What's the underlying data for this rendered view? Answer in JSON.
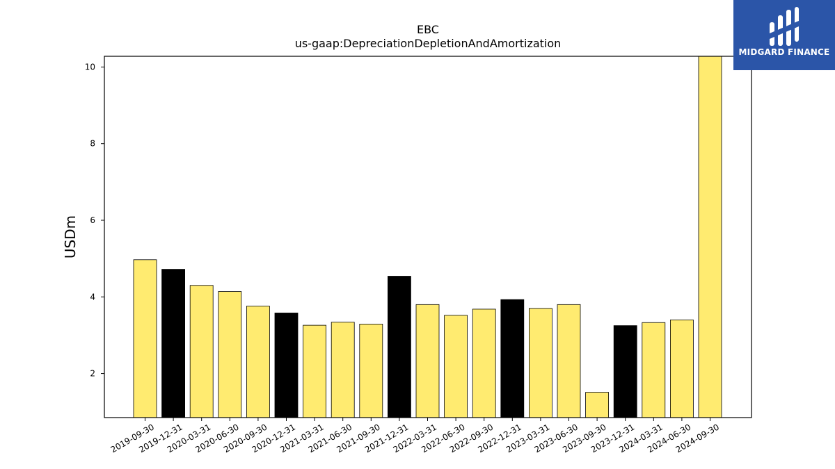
{
  "chart_data": {
    "type": "bar",
    "title": "EBC",
    "subtitle": "us-gaap:DepreciationDepletionAndAmortization",
    "xlabel": "",
    "ylabel": "USDm",
    "ylim": [
      0.85,
      10.28
    ],
    "yticks": [
      2,
      4,
      6,
      8,
      10
    ],
    "grid": false,
    "colors": {
      "default": "#ffeb70",
      "highlight": "#000000",
      "edge": "#000000"
    },
    "categories": [
      "2019-09-30",
      "2019-12-31",
      "2020-03-31",
      "2020-06-30",
      "2020-09-30",
      "2020-12-31",
      "2021-03-31",
      "2021-06-30",
      "2021-09-30",
      "2021-12-31",
      "2022-03-31",
      "2022-06-30",
      "2022-09-30",
      "2022-12-31",
      "2023-03-31",
      "2023-06-30",
      "2023-09-30",
      "2023-12-31",
      "2024-03-31",
      "2024-06-30",
      "2024-09-30"
    ],
    "values": [
      4.97,
      4.72,
      4.3,
      4.14,
      3.76,
      3.58,
      3.26,
      3.34,
      3.29,
      4.54,
      3.8,
      3.52,
      3.68,
      3.93,
      3.7,
      3.8,
      1.51,
      3.25,
      3.33,
      3.4,
      10.3
    ],
    "highlight": [
      false,
      true,
      false,
      false,
      false,
      true,
      false,
      false,
      false,
      true,
      false,
      false,
      false,
      true,
      false,
      false,
      false,
      true,
      false,
      false,
      false
    ]
  },
  "logo": {
    "text": "MIDGARD FINANCE",
    "background": "#2b55a8"
  }
}
